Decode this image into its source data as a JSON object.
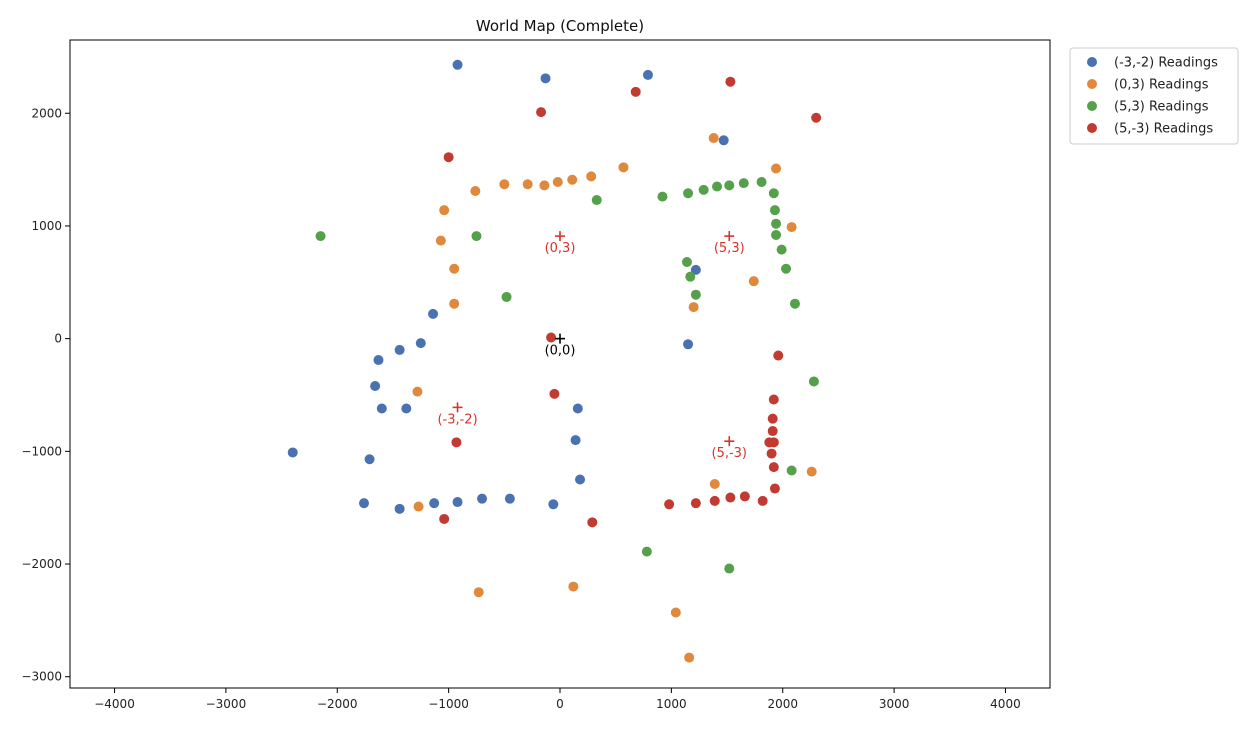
{
  "chart_data": {
    "type": "scatter",
    "title": "World Map (Complete)",
    "xlabel": "",
    "ylabel": "",
    "xlim": [
      -4400,
      4400
    ],
    "ylim": [
      -3100,
      2650
    ],
    "xticks": [
      -4000,
      -3000,
      -2000,
      -1000,
      0,
      1000,
      2000,
      3000,
      4000
    ],
    "yticks": [
      -3000,
      -2000,
      -1000,
      0,
      1000,
      2000
    ],
    "grid": false,
    "legend_position": "upper right, outside plot",
    "series": [
      {
        "name": "(-3,-2) Readings",
        "color": "#4a72b0",
        "points": [
          [
            -920,
            2430
          ],
          [
            -130,
            2310
          ],
          [
            790,
            2340
          ],
          [
            1470,
            1760
          ],
          [
            -1140,
            220
          ],
          [
            -1440,
            -100
          ],
          [
            -1630,
            -190
          ],
          [
            -1250,
            -40
          ],
          [
            -1660,
            -420
          ],
          [
            -1600,
            -620
          ],
          [
            -1380,
            -620
          ],
          [
            -2400,
            -1010
          ],
          [
            -1710,
            -1070
          ],
          [
            -1760,
            -1460
          ],
          [
            -1440,
            -1510
          ],
          [
            -1130,
            -1460
          ],
          [
            -920,
            -1450
          ],
          [
            -700,
            -1420
          ],
          [
            -450,
            -1420
          ],
          [
            -60,
            -1470
          ],
          [
            160,
            -620
          ],
          [
            140,
            -900
          ],
          [
            180,
            -1250
          ],
          [
            1220,
            610
          ],
          [
            1150,
            -50
          ]
        ]
      },
      {
        "name": "(0,3) Readings",
        "color": "#e0883b",
        "points": [
          [
            -760,
            1310
          ],
          [
            -500,
            1370
          ],
          [
            -290,
            1370
          ],
          [
            -140,
            1360
          ],
          [
            -20,
            1390
          ],
          [
            110,
            1410
          ],
          [
            280,
            1440
          ],
          [
            570,
            1520
          ],
          [
            -1040,
            1140
          ],
          [
            -1070,
            870
          ],
          [
            -950,
            620
          ],
          [
            -950,
            310
          ],
          [
            1380,
            1780
          ],
          [
            1940,
            1510
          ],
          [
            2080,
            990
          ],
          [
            1740,
            510
          ],
          [
            1200,
            280
          ],
          [
            -1280,
            -470
          ],
          [
            -1270,
            -1490
          ],
          [
            -730,
            -2250
          ],
          [
            120,
            -2200
          ],
          [
            1040,
            -2430
          ],
          [
            1160,
            -2830
          ],
          [
            1390,
            -1290
          ],
          [
            2260,
            -1180
          ]
        ]
      },
      {
        "name": "(5,3) Readings",
        "color": "#55a04a",
        "points": [
          [
            -2150,
            910
          ],
          [
            -750,
            910
          ],
          [
            -480,
            370
          ],
          [
            330,
            1230
          ],
          [
            920,
            1260
          ],
          [
            1150,
            1290
          ],
          [
            1290,
            1320
          ],
          [
            1410,
            1350
          ],
          [
            1520,
            1360
          ],
          [
            1650,
            1380
          ],
          [
            1810,
            1390
          ],
          [
            1920,
            1290
          ],
          [
            1930,
            1140
          ],
          [
            1940,
            1020
          ],
          [
            1940,
            920
          ],
          [
            1990,
            790
          ],
          [
            2030,
            620
          ],
          [
            2110,
            310
          ],
          [
            1140,
            680
          ],
          [
            1170,
            550
          ],
          [
            1220,
            390
          ],
          [
            2280,
            -380
          ],
          [
            2080,
            -1170
          ],
          [
            780,
            -1890
          ],
          [
            1520,
            -2040
          ]
        ]
      },
      {
        "name": "(5,-3) Readings",
        "color": "#c23b32",
        "points": [
          [
            1530,
            2280
          ],
          [
            680,
            2190
          ],
          [
            -170,
            2010
          ],
          [
            2300,
            1960
          ],
          [
            -1000,
            1610
          ],
          [
            -80,
            10
          ],
          [
            -50,
            -490
          ],
          [
            1960,
            -150
          ],
          [
            1920,
            -540
          ],
          [
            1910,
            -710
          ],
          [
            1910,
            -820
          ],
          [
            1920,
            -920
          ],
          [
            1880,
            -920
          ],
          [
            1900,
            -1020
          ],
          [
            1920,
            -1140
          ],
          [
            1930,
            -1330
          ],
          [
            1820,
            -1440
          ],
          [
            1660,
            -1400
          ],
          [
            1530,
            -1410
          ],
          [
            1390,
            -1440
          ],
          [
            1220,
            -1460
          ],
          [
            980,
            -1470
          ],
          [
            -930,
            -920
          ],
          [
            -1040,
            -1600
          ],
          [
            290,
            -1630
          ]
        ]
      }
    ],
    "markers": [
      {
        "x": 0,
        "y": 0,
        "label": "(0,0)",
        "color": "#000000"
      },
      {
        "x": 0,
        "y": 910,
        "label": "(0,3)",
        "color": "#d8322b"
      },
      {
        "x": 1520,
        "y": 910,
        "label": "(5,3)",
        "color": "#d8322b"
      },
      {
        "x": -920,
        "y": -610,
        "label": "(-3,-2)",
        "color": "#d8322b"
      },
      {
        "x": 1520,
        "y": -910,
        "label": "(5,-3)",
        "color": "#d8322b"
      }
    ]
  }
}
